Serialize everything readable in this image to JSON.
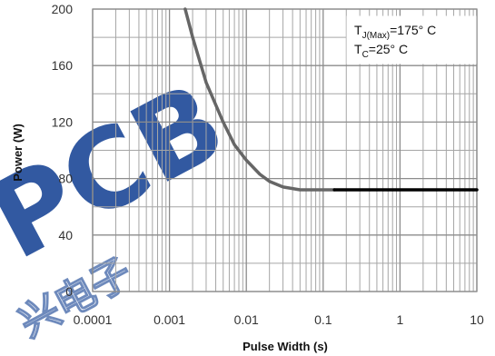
{
  "chart_data": {
    "type": "line",
    "title": "",
    "xlabel": "Pulse Width (s)",
    "ylabel": "Power (W)",
    "x_scale": "log",
    "xlim": [
      0.0001,
      10
    ],
    "ylim": [
      0,
      200
    ],
    "x_ticks": [
      "0.0001",
      "0.001",
      "0.01",
      "0.1",
      "1",
      "10"
    ],
    "y_ticks": [
      "0",
      "40",
      "80",
      "120",
      "160",
      "200"
    ],
    "grid": true,
    "annotations": [
      {
        "main": "T",
        "sub": "J(Max)",
        "rest": "=175° C"
      },
      {
        "main": "T",
        "sub": "C",
        "rest": "=25° C"
      }
    ],
    "series": [
      {
        "color": "#666666",
        "x": [
          0.0016,
          0.002,
          0.003,
          0.005,
          0.007,
          0.01,
          0.015,
          0.02,
          0.03,
          0.05,
          0.07,
          0.1,
          0.14
        ],
        "y": [
          200,
          180,
          148,
          120,
          104,
          93,
          83,
          78,
          74,
          72,
          72,
          72,
          72
        ]
      },
      {
        "color": "#000000",
        "x": [
          0.14,
          10
        ],
        "y": [
          72,
          72
        ]
      }
    ],
    "watermark": {
      "text": "PCB",
      "subtext": "兴电子",
      "color": "#0f3d91"
    }
  }
}
